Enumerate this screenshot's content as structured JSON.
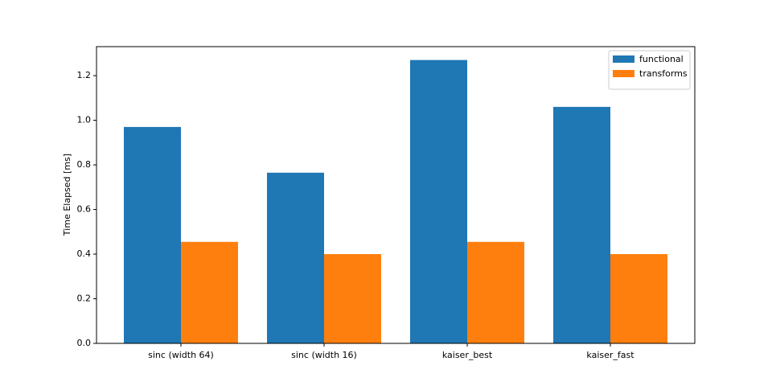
{
  "chart_data": {
    "type": "bar",
    "y_label": "Time Elapsed [ms]",
    "categories": [
      "sinc (width 64)",
      "sinc (width 16)",
      "kaiser_best",
      "kaiser_fast"
    ],
    "series": [
      {
        "name": "functional",
        "color": "#1f77b4",
        "values": [
          0.97,
          0.765,
          1.27,
          1.06
        ]
      },
      {
        "name": "transforms",
        "color": "#ff7f0e",
        "values": [
          0.455,
          0.4,
          0.455,
          0.4
        ]
      }
    ],
    "ylim": [
      0,
      1.33
    ],
    "yticks": [
      {
        "value": 0,
        "label": "0.0"
      },
      0.2,
      0.4,
      0.6,
      0.8,
      {
        "value": 1,
        "label": "1.0"
      },
      1.2
    ],
    "legend": "upper-right"
  }
}
